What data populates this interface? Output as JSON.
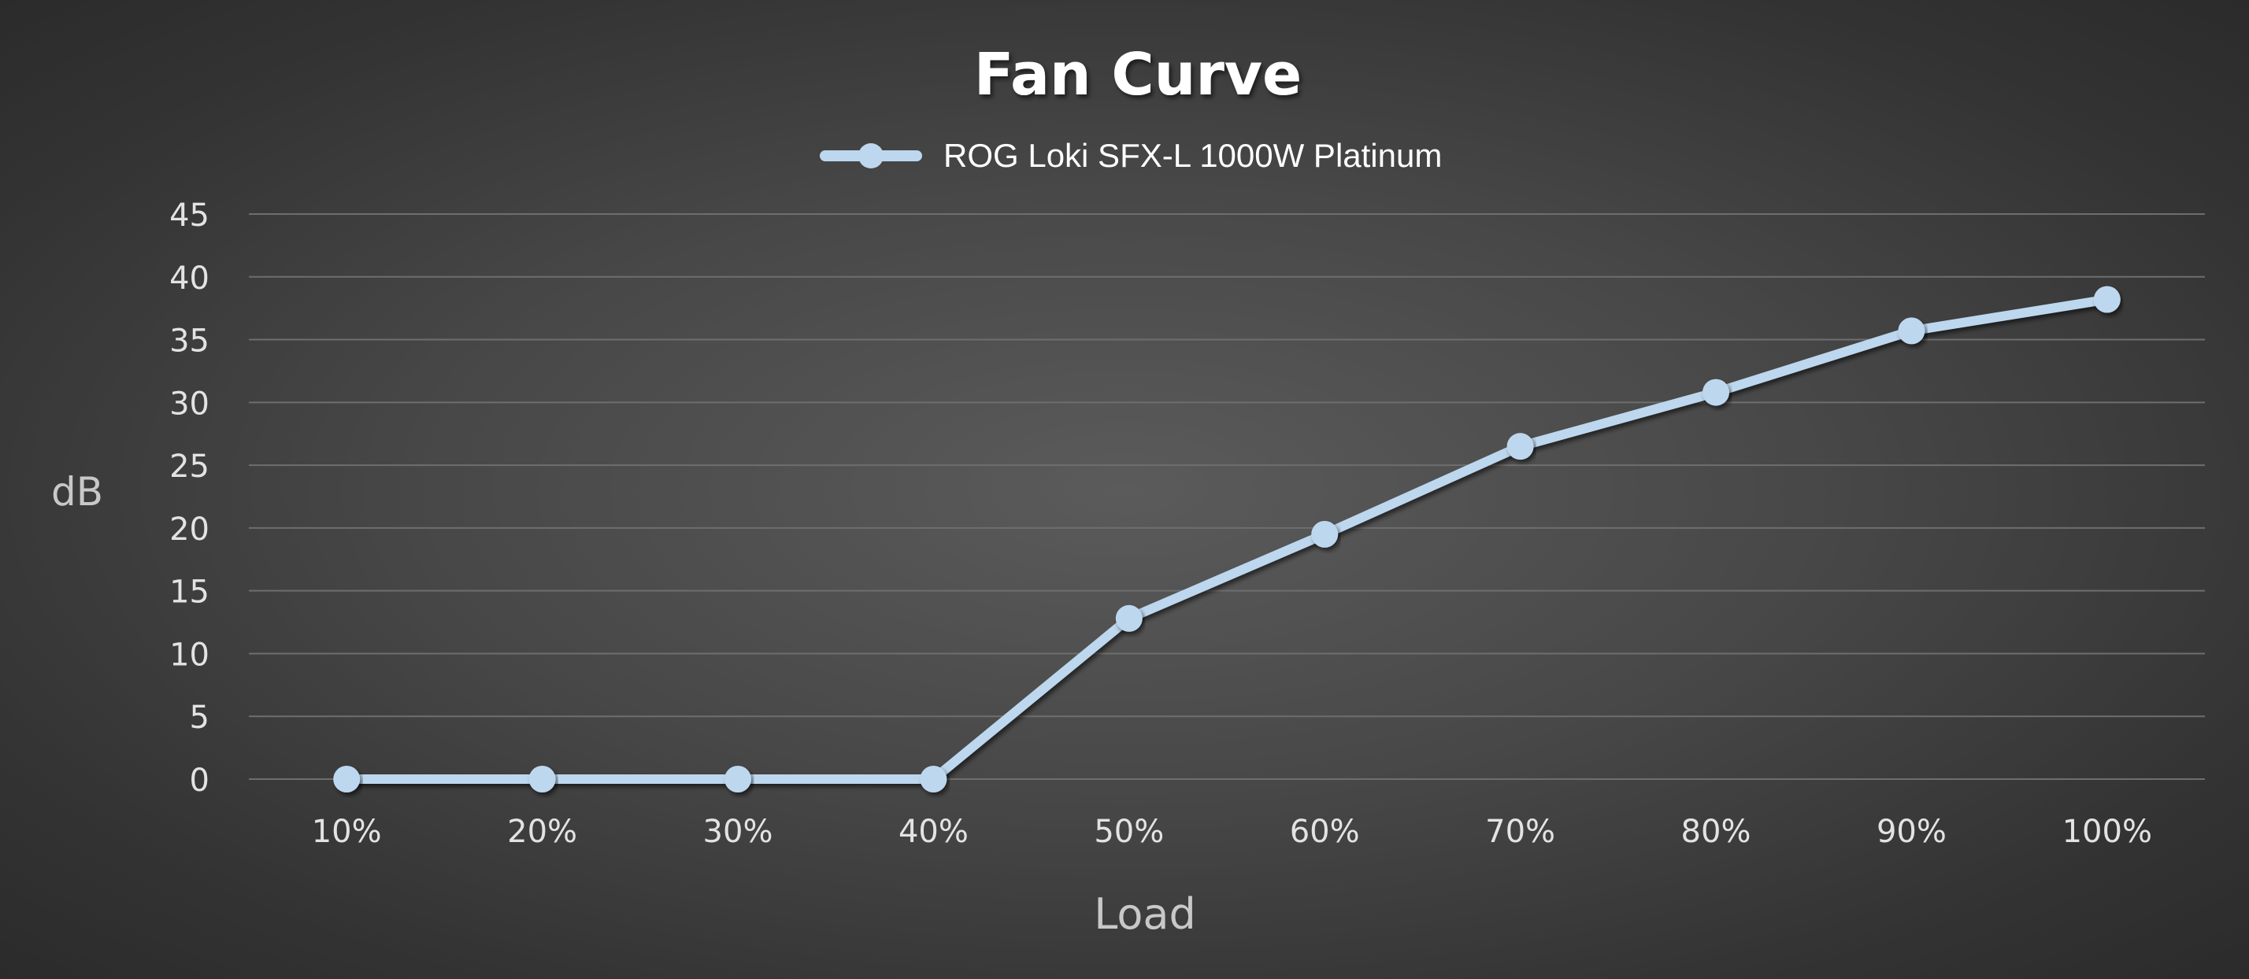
{
  "chart_data": {
    "type": "line",
    "title": "Fan Curve",
    "xlabel": "Load",
    "ylabel": "dB",
    "categories": [
      "10%",
      "20%",
      "30%",
      "40%",
      "50%",
      "60%",
      "70%",
      "80%",
      "90%",
      "100%"
    ],
    "series": [
      {
        "name": "ROG Loki SFX-L 1000W Platinum",
        "values": [
          0,
          0,
          0,
          0,
          12.8,
          19.5,
          26.5,
          30.8,
          35.7,
          38.2
        ],
        "color": "#bdd7ee"
      }
    ],
    "ylim": [
      0,
      45
    ],
    "yticks": [
      "0",
      "5",
      "10",
      "15",
      "20",
      "25",
      "30",
      "35",
      "40",
      "45"
    ],
    "grid": true,
    "legend_position": "top-center",
    "colors": {
      "gridline": "#6e6e6e",
      "tick_text": "#e3e3e3",
      "axis_label": "#c8c8c8",
      "title": "#ffffff"
    }
  }
}
